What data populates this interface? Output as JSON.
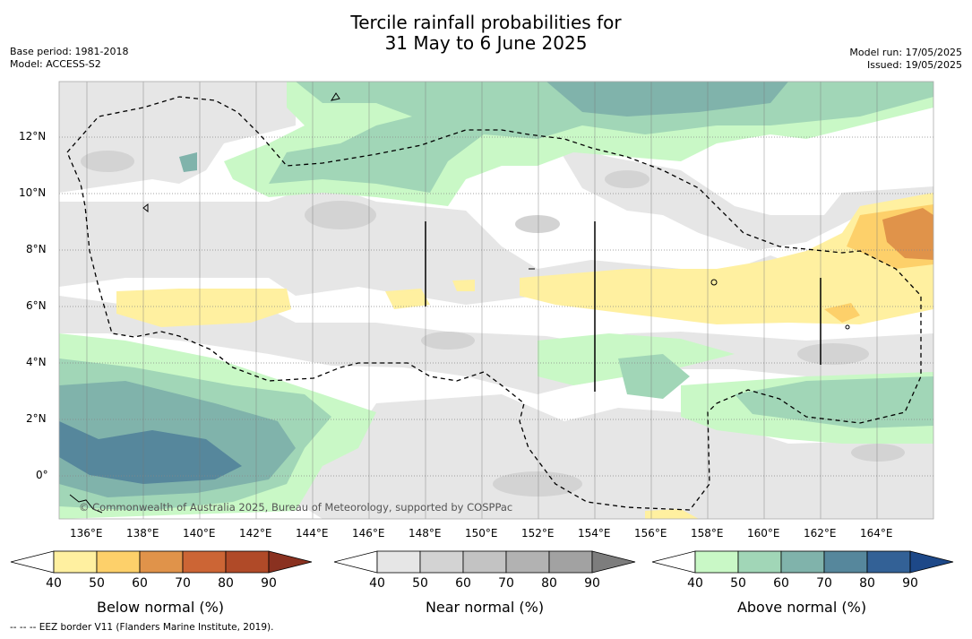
{
  "header": {
    "title_line1": "Tercile rainfall probabilities for",
    "title_line2": "31 May to 6 June 2025",
    "base_period": "Base period: 1981-2018",
    "model": "Model: ACCESS-S2",
    "model_run": "Model run: 17/05/2025",
    "issued": "Issued: 19/05/2025"
  },
  "map": {
    "lon_labels": [
      "136°E",
      "138°E",
      "140°E",
      "142°E",
      "144°E",
      "146°E",
      "148°E",
      "150°E",
      "152°E",
      "154°E",
      "156°E",
      "158°E",
      "160°E",
      "162°E",
      "164°E"
    ],
    "lat_labels": [
      "12°N",
      "10°N",
      "8°N",
      "6°N",
      "4°N",
      "2°N",
      "0°"
    ],
    "copyright": "© Commonwealth of Australia 2025, Bureau of Meteorology, supported by COSPPac",
    "eez_style": "dashed"
  },
  "legend": {
    "below": {
      "title": "Below normal (%)",
      "ticks": [
        "40",
        "50",
        "60",
        "70",
        "80",
        "90"
      ],
      "colors": [
        "#ffffff",
        "#fff0a0",
        "#fdd06a",
        "#e0934a",
        "#cc6535",
        "#b04a28",
        "#8a3120"
      ]
    },
    "near": {
      "title": "Near normal (%)",
      "ticks": [
        "40",
        "50",
        "60",
        "70",
        "80",
        "90"
      ],
      "colors": [
        "#ffffff",
        "#e6e6e6",
        "#d3d3d3",
        "#c3c3c3",
        "#b2b2b2",
        "#a2a2a2",
        "#7d7d7d"
      ]
    },
    "above": {
      "title": "Above normal (%)",
      "ticks": [
        "40",
        "50",
        "60",
        "70",
        "80",
        "90"
      ],
      "colors": [
        "#ffffff",
        "#c9f8c6",
        "#a1d6b7",
        "#80b3ab",
        "#56879c",
        "#336196",
        "#1d4888"
      ]
    }
  },
  "footnote": "--  --  -- EEZ border V11 (Flanders Marine Institute, 2019)."
}
